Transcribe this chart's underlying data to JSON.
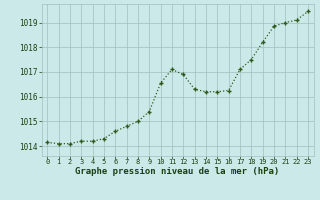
{
  "x": [
    0,
    1,
    2,
    3,
    4,
    5,
    6,
    7,
    8,
    9,
    10,
    11,
    12,
    13,
    14,
    15,
    16,
    17,
    18,
    19,
    20,
    21,
    22,
    23
  ],
  "y": [
    1014.15,
    1014.1,
    1014.1,
    1014.2,
    1014.2,
    1014.3,
    1014.6,
    1014.8,
    1015.0,
    1015.4,
    1016.55,
    1017.1,
    1016.9,
    1016.3,
    1016.2,
    1016.2,
    1016.25,
    1017.1,
    1017.5,
    1018.2,
    1018.85,
    1019.0,
    1019.1,
    1019.45
  ],
  "line_color": "#2d5a1b",
  "marker": "+",
  "bg_color": "#cce9e9",
  "grid_color": "#9fbfbf",
  "xlabel": "Graphe pression niveau de la mer (hPa)",
  "xlabel_color": "#1a4010",
  "tick_color": "#1a4010",
  "ylim_min": 1013.6,
  "ylim_max": 1019.75,
  "xlim_min": -0.5,
  "xlim_max": 23.5,
  "yticks": [
    1014,
    1015,
    1016,
    1017,
    1018,
    1019
  ],
  "xticks": [
    0,
    1,
    2,
    3,
    4,
    5,
    6,
    7,
    8,
    9,
    10,
    11,
    12,
    13,
    14,
    15,
    16,
    17,
    18,
    19,
    20,
    21,
    22,
    23
  ],
  "ytick_fontsize": 5.5,
  "xtick_fontsize": 5.0,
  "xlabel_fontsize": 6.5,
  "linewidth": 0.9,
  "markersize": 3.5,
  "markeredgewidth": 1.0
}
